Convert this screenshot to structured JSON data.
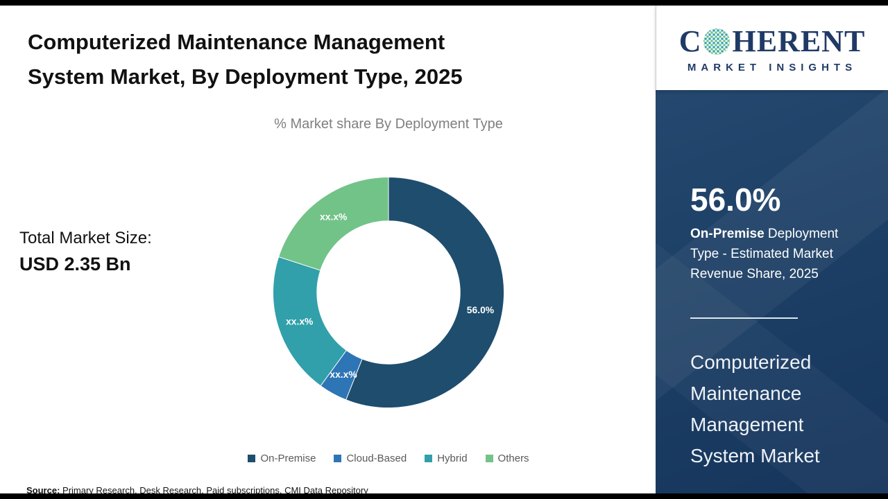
{
  "header": {
    "title": "Computerized Maintenance Management System Market, By Deployment Type, 2025"
  },
  "chart_data": {
    "type": "donut",
    "title": "% Market share By Deployment Type",
    "total_label": "Total Market Size:",
    "total_value": "USD 2.35 Bn",
    "start_angle_deg": -90,
    "direction": "clockwise",
    "inner_radius_ratio": 0.62,
    "legend_position": "bottom",
    "segments": [
      {
        "name": "On-Premise",
        "value": 56.0,
        "display_label": "56.0%",
        "color": "#1e4d6e"
      },
      {
        "name": "Cloud-Based",
        "value": 4.0,
        "display_label": "xx.x%",
        "color": "#2e75b6"
      },
      {
        "name": "Hybrid",
        "value": 20.0,
        "display_label": "xx.x%",
        "color": "#31a0aa"
      },
      {
        "name": "Others",
        "value": 20.0,
        "display_label": "xx.x%",
        "color": "#72c388"
      }
    ]
  },
  "sidebar": {
    "logo": {
      "first_letter": "C",
      "rest": "HERENT",
      "subtitle": "MARKET INSIGHTS"
    },
    "stat_value": "56.0%",
    "stat_bold": "On-Premise",
    "stat_rest": " Deployment Type - Estimated Market Revenue Share, 2025",
    "market_name": "Computerized Maintenance Management System Market"
  },
  "source": {
    "label": "Source:",
    "text": " Primary Research, Desk Research, Paid subscriptions, CMI Data Repository"
  },
  "brand": {
    "navy": "#203a66",
    "teal": "#2fa3a9",
    "sidebar_bg": "#1d4066"
  }
}
